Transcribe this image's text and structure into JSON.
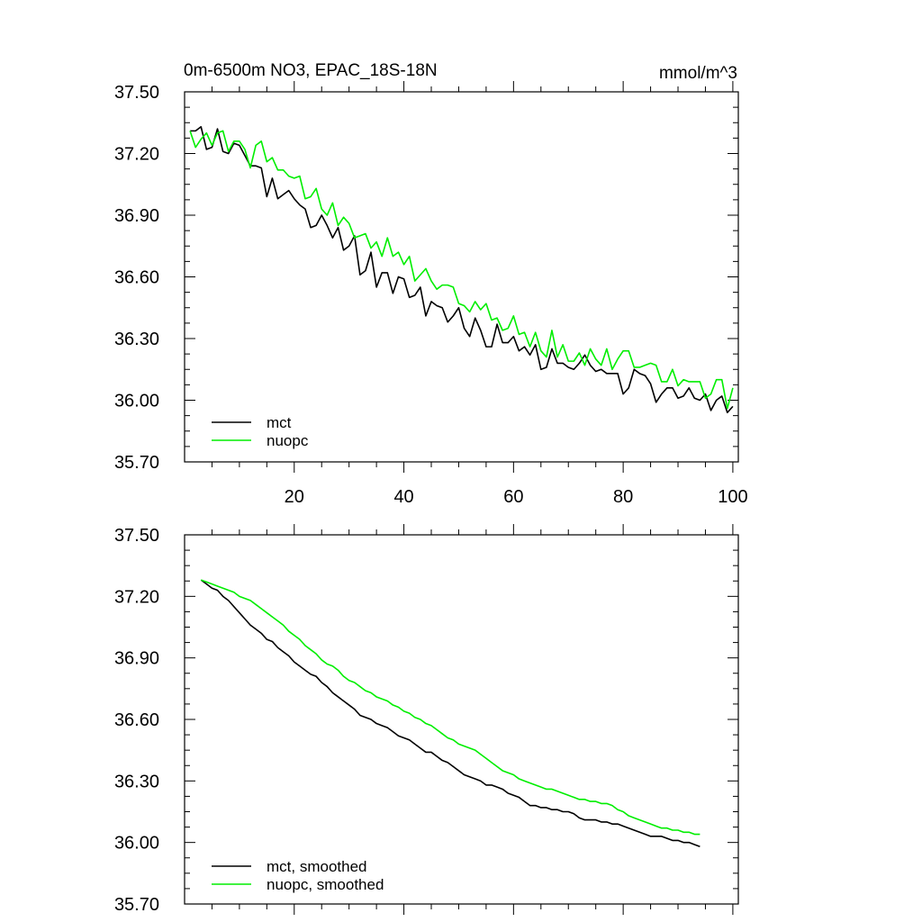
{
  "chart_data": [
    {
      "type": "line",
      "title": "0m-6500m NO3, EPAC_18S-18N",
      "units": "mmol/m^3",
      "xlim": [
        0,
        101
      ],
      "ylim": [
        35.7,
        37.5
      ],
      "x_ticks": [
        20,
        40,
        60,
        80,
        100
      ],
      "x_tick_labels": [
        "20",
        "40",
        "60",
        "80",
        "100"
      ],
      "y_ticks": [
        35.7,
        36.0,
        36.3,
        36.6,
        36.9,
        37.2,
        37.5
      ],
      "y_tick_labels": [
        "35.70",
        "36.00",
        "36.30",
        "36.60",
        "36.90",
        "37.20",
        "37.50"
      ],
      "legend_position": "bottom-left",
      "series": [
        {
          "name": "mct",
          "color": "#000000",
          "x_start": 1,
          "values": [
            37.31,
            37.31,
            37.33,
            37.22,
            37.23,
            37.32,
            37.21,
            37.2,
            37.25,
            37.24,
            37.19,
            37.14,
            37.14,
            37.13,
            36.99,
            37.08,
            36.98,
            37.0,
            37.02,
            36.98,
            36.95,
            36.93,
            36.84,
            36.85,
            36.9,
            36.85,
            36.79,
            36.84,
            36.73,
            36.75,
            36.8,
            36.61,
            36.63,
            36.72,
            36.55,
            36.62,
            36.62,
            36.52,
            36.6,
            36.59,
            36.5,
            36.51,
            36.55,
            36.41,
            36.48,
            36.46,
            36.45,
            36.38,
            36.41,
            36.45,
            36.35,
            36.31,
            36.4,
            36.34,
            36.26,
            36.26,
            36.37,
            36.28,
            36.28,
            36.31,
            36.24,
            36.26,
            36.22,
            36.27,
            36.15,
            36.16,
            36.25,
            36.18,
            36.18,
            36.16,
            36.15,
            36.18,
            36.22,
            36.17,
            36.14,
            36.15,
            36.13,
            36.13,
            36.13,
            36.03,
            36.06,
            36.15,
            36.13,
            36.12,
            36.08,
            35.99,
            36.03,
            36.06,
            36.06,
            36.01,
            36.02,
            36.06,
            36.01,
            36.0,
            36.03,
            35.95,
            36.0,
            36.02,
            35.94,
            35.97
          ]
        },
        {
          "name": "nuopc",
          "color": "#00ee00",
          "x_start": 1,
          "values": [
            37.31,
            37.23,
            37.27,
            37.3,
            37.24,
            37.3,
            37.31,
            37.21,
            37.26,
            37.26,
            37.22,
            37.13,
            37.24,
            37.26,
            37.16,
            37.18,
            37.12,
            37.12,
            37.09,
            37.08,
            37.09,
            36.98,
            36.99,
            37.03,
            36.93,
            36.9,
            36.96,
            36.85,
            36.89,
            36.86,
            36.79,
            36.8,
            36.81,
            36.74,
            36.77,
            36.7,
            36.79,
            36.7,
            36.72,
            36.66,
            36.7,
            36.58,
            36.61,
            36.64,
            36.58,
            36.54,
            36.56,
            36.56,
            36.55,
            36.47,
            36.46,
            36.43,
            36.48,
            36.44,
            36.47,
            36.39,
            36.4,
            36.34,
            36.35,
            36.41,
            36.32,
            36.33,
            36.26,
            36.33,
            36.24,
            36.21,
            36.34,
            36.21,
            36.27,
            36.19,
            36.19,
            36.23,
            36.17,
            36.25,
            36.2,
            36.17,
            36.25,
            36.15,
            36.2,
            36.24,
            36.24,
            36.16,
            36.16,
            36.17,
            36.18,
            36.17,
            36.09,
            36.09,
            36.15,
            36.07,
            36.1,
            36.09,
            36.09,
            36.09,
            36.01,
            36.03,
            36.1,
            36.1,
            35.96,
            36.06
          ]
        }
      ]
    },
    {
      "type": "line",
      "title": "",
      "xlim": [
        0,
        101
      ],
      "ylim": [
        35.7,
        37.5
      ],
      "x_ticks": [
        20,
        40,
        60,
        80,
        100
      ],
      "y_ticks": [
        35.7,
        36.0,
        36.3,
        36.6,
        36.9,
        37.2,
        37.5
      ],
      "y_tick_labels": [
        "35.70",
        "36.00",
        "36.30",
        "36.60",
        "36.90",
        "37.20",
        "37.50"
      ],
      "legend_position": "bottom-left",
      "series": [
        {
          "name": "mct, smoothed",
          "color": "#000000",
          "x_start": 3,
          "values": [
            37.28,
            37.26,
            37.24,
            37.23,
            37.2,
            37.18,
            37.15,
            37.12,
            37.09,
            37.06,
            37.04,
            37.02,
            36.99,
            36.98,
            36.95,
            36.93,
            36.91,
            36.88,
            36.86,
            36.84,
            36.82,
            36.81,
            36.78,
            36.76,
            36.73,
            36.71,
            36.69,
            36.67,
            36.65,
            36.62,
            36.61,
            36.6,
            36.58,
            36.57,
            36.56,
            36.54,
            36.52,
            36.51,
            36.5,
            36.48,
            36.46,
            36.44,
            36.44,
            36.42,
            36.4,
            36.39,
            36.37,
            36.35,
            36.33,
            36.32,
            36.31,
            36.3,
            36.28,
            36.28,
            36.27,
            36.26,
            36.24,
            36.23,
            36.22,
            36.2,
            36.18,
            36.18,
            36.17,
            36.17,
            36.16,
            36.16,
            36.15,
            36.15,
            36.14,
            36.12,
            36.11,
            36.11,
            36.11,
            36.1,
            36.1,
            36.09,
            36.09,
            36.08,
            36.07,
            36.06,
            36.05,
            36.04,
            36.03,
            36.03,
            36.03,
            36.02,
            36.01,
            36.01,
            36.0,
            36.0,
            35.99,
            35.98
          ]
        },
        {
          "name": "nuopc, smoothed",
          "color": "#00ee00",
          "x_start": 3,
          "values": [
            37.28,
            37.27,
            37.26,
            37.25,
            37.24,
            37.23,
            37.22,
            37.2,
            37.19,
            37.18,
            37.16,
            37.14,
            37.12,
            37.1,
            37.08,
            37.06,
            37.03,
            37.01,
            36.99,
            36.96,
            36.94,
            36.92,
            36.89,
            36.87,
            36.86,
            36.84,
            36.81,
            36.79,
            36.78,
            36.76,
            36.74,
            36.73,
            36.71,
            36.7,
            36.69,
            36.67,
            36.66,
            36.64,
            36.63,
            36.61,
            36.6,
            36.58,
            36.57,
            36.55,
            36.53,
            36.51,
            36.5,
            36.48,
            36.47,
            36.46,
            36.45,
            36.43,
            36.41,
            36.39,
            36.37,
            36.35,
            36.34,
            36.33,
            36.31,
            36.3,
            36.29,
            36.28,
            36.27,
            36.26,
            36.26,
            36.25,
            36.24,
            36.23,
            36.22,
            36.21,
            36.21,
            36.2,
            36.2,
            36.19,
            36.19,
            36.18,
            36.16,
            36.15,
            36.13,
            36.12,
            36.11,
            36.1,
            36.09,
            36.08,
            36.07,
            36.07,
            36.06,
            36.06,
            36.05,
            36.05,
            36.04,
            36.04
          ]
        }
      ]
    }
  ]
}
